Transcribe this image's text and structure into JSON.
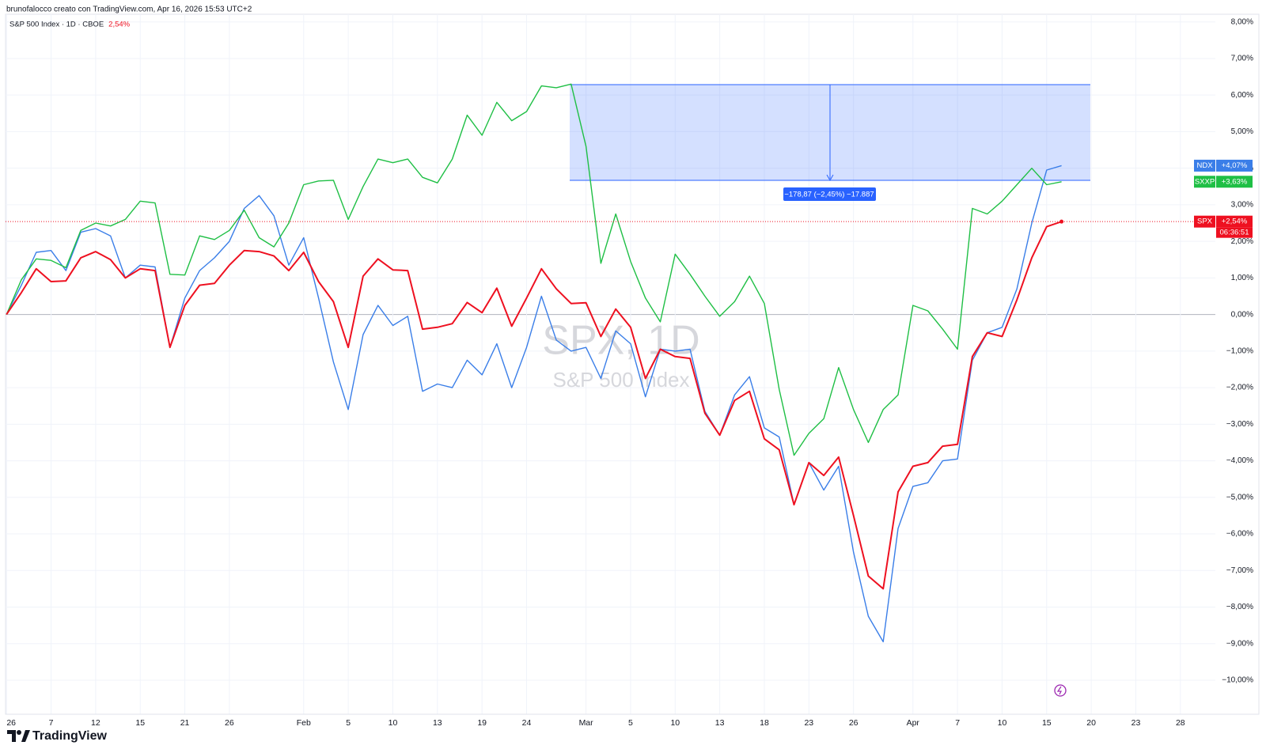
{
  "chart_data": {
    "type": "line",
    "attribution": "brunofalocco creato con TradingView.com, Apr 16, 2026 15:53 UTC+2",
    "legend_title": "S&P 500 Index · 1D · CBOE",
    "legend_value": "2,54%",
    "watermark": "SPX, 1D",
    "watermark_subtitle": "S&P 500 Index",
    "measure_label": "−178,87 (−2,45%) −17.887",
    "countdown": "06:36:51",
    "brand": "TradingView",
    "grid": true,
    "categories": [
      "26",
      null,
      null,
      "7",
      null,
      null,
      "12",
      null,
      null,
      "15",
      null,
      null,
      "21",
      null,
      null,
      "26",
      null,
      null,
      null,
      null,
      "Feb",
      null,
      null,
      "5",
      null,
      null,
      "10",
      null,
      null,
      "13",
      null,
      null,
      "19",
      null,
      null,
      "24",
      null,
      null,
      null,
      "Mar",
      null,
      null,
      "5",
      null,
      null,
      "10",
      null,
      null,
      "13",
      null,
      null,
      "18",
      null,
      null,
      "23",
      null,
      null,
      "26",
      null,
      null,
      null,
      "Apr",
      null,
      null,
      "7",
      null,
      null,
      "10",
      null,
      null,
      "15",
      null,
      null,
      "20",
      null,
      null,
      "23",
      null,
      null,
      "28"
    ],
    "series": [
      {
        "name": "NDX",
        "color": "#3a7ee8",
        "label": "+4,07%",
        "values": [
          0,
          0.8,
          1.7,
          1.75,
          1.2,
          2.25,
          2.35,
          2.15,
          1.0,
          1.35,
          1.3,
          -0.9,
          0.45,
          1.2,
          1.55,
          2.0,
          2.9,
          3.25,
          2.7,
          1.35,
          2.1,
          0.45,
          -1.3,
          -2.6,
          -0.55,
          0.25,
          -0.3,
          -0.05,
          -2.1,
          -1.9,
          -2.0,
          -1.25,
          -1.65,
          -0.8,
          -2.0,
          -0.9,
          0.5,
          -0.7,
          -1.0,
          -0.9,
          -1.75,
          -0.45,
          -0.8,
          -2.25,
          -0.95,
          -1.0,
          -0.95,
          -2.65,
          -3.3,
          -2.2,
          -1.7,
          -3.1,
          -3.35,
          -5.2,
          -4.05,
          -4.8,
          -4.15,
          -6.5,
          -8.25,
          -8.95,
          -5.85,
          -4.7,
          -4.6,
          -4.0,
          -3.95,
          -1.25,
          -0.5,
          -0.35,
          0.7,
          2.5,
          3.95,
          4.07,
          null,
          null,
          null,
          null,
          null,
          null,
          null,
          null
        ]
      },
      {
        "name": "SXXP",
        "color": "#1fbf45",
        "label": "+3,63%",
        "values": [
          0,
          0.95,
          1.52,
          1.48,
          1.28,
          2.3,
          2.5,
          2.42,
          2.6,
          3.1,
          3.05,
          1.1,
          1.08,
          2.15,
          2.05,
          2.3,
          2.85,
          2.1,
          1.85,
          2.5,
          3.55,
          3.65,
          3.67,
          2.6,
          3.5,
          4.25,
          4.15,
          4.25,
          3.75,
          3.6,
          4.25,
          5.45,
          4.9,
          5.8,
          5.3,
          5.55,
          6.25,
          6.2,
          6.3,
          4.6,
          1.4,
          2.75,
          1.45,
          0.45,
          -0.2,
          1.65,
          1.1,
          0.5,
          -0.05,
          0.35,
          1.05,
          0.3,
          -2.05,
          -3.85,
          -3.25,
          -2.85,
          -1.45,
          -2.6,
          -3.5,
          -2.6,
          -2.2,
          0.25,
          0.1,
          -0.4,
          -0.95,
          2.9,
          2.75,
          3.1,
          3.55,
          4.0,
          3.55,
          3.63,
          null,
          null,
          null,
          null,
          null,
          null,
          null,
          null
        ]
      },
      {
        "name": "SPX",
        "color": "#ee1020",
        "label": "+2,54%",
        "values": [
          0,
          0.6,
          1.25,
          0.9,
          0.92,
          1.55,
          1.72,
          1.5,
          1.0,
          1.25,
          1.2,
          -0.9,
          0.25,
          0.8,
          0.85,
          1.35,
          1.75,
          1.72,
          1.6,
          1.2,
          1.7,
          0.9,
          0.35,
          -0.9,
          1.05,
          1.52,
          1.22,
          1.2,
          -0.4,
          -0.35,
          -0.25,
          0.33,
          0.05,
          0.72,
          -0.32,
          0.45,
          1.25,
          0.7,
          0.3,
          0.32,
          -0.6,
          0.15,
          -0.35,
          -1.75,
          -0.95,
          -1.15,
          -1.2,
          -2.7,
          -3.3,
          -2.35,
          -2.1,
          -3.4,
          -3.7,
          -5.2,
          -4.05,
          -4.4,
          -3.9,
          -5.5,
          -7.15,
          -7.5,
          -4.85,
          -4.15,
          -4.05,
          -3.6,
          -3.55,
          -1.15,
          -0.5,
          -0.6,
          0.4,
          1.55,
          2.4,
          2.54,
          null,
          null,
          null,
          null,
          null,
          null,
          null,
          null
        ]
      }
    ],
    "ylim": [
      -10.93,
      8.21
    ],
    "yticks": [
      {
        "value": 8,
        "label": "8,00%"
      },
      {
        "value": 7,
        "label": "7,00%"
      },
      {
        "value": 6,
        "label": "6,00%"
      },
      {
        "value": 5,
        "label": "5,00%"
      },
      {
        "value": 4,
        "label": "4,00%"
      },
      {
        "value": 3,
        "label": "3,00%"
      },
      {
        "value": 2,
        "label": "2,00%"
      },
      {
        "value": 1,
        "label": "1,00%"
      },
      {
        "value": 0,
        "label": "0,00%"
      },
      {
        "value": -1,
        "label": "−1,00%"
      },
      {
        "value": -2,
        "label": "−2,00%"
      },
      {
        "value": -3,
        "label": "−3,00%"
      },
      {
        "value": -4,
        "label": "−4,00%"
      },
      {
        "value": -5,
        "label": "−5,00%"
      },
      {
        "value": -6,
        "label": "−6,00%"
      },
      {
        "value": -7,
        "label": "−7,00%"
      },
      {
        "value": -8,
        "label": "−8,00%"
      },
      {
        "value": -9,
        "label": "−9,00%"
      },
      {
        "value": -10,
        "label": "−10,00%"
      }
    ]
  }
}
